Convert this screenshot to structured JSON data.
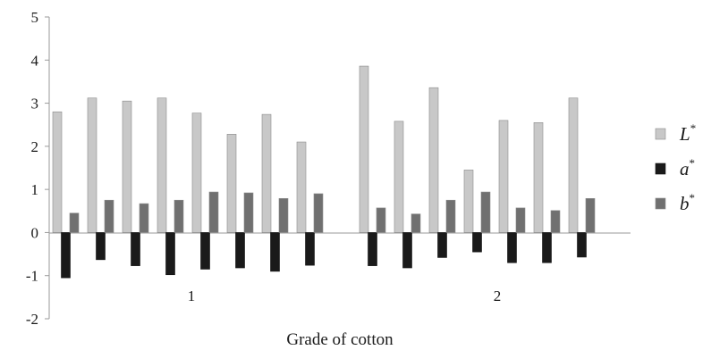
{
  "chart_data": {
    "type": "bar",
    "xlabel": "Grade of cotton",
    "ylabel": "",
    "ylim": [
      -2,
      5
    ],
    "yticks": [
      -2,
      -1,
      0,
      1,
      2,
      3,
      4,
      5
    ],
    "grid": false,
    "legend_position": "right",
    "groups": [
      {
        "label": "1",
        "samples": 8
      },
      {
        "label": "2",
        "samples": 7
      }
    ],
    "series": [
      {
        "name": "L",
        "sup": "*",
        "color": "#c8c8c8",
        "values": [
          2.8,
          3.12,
          3.05,
          3.12,
          2.77,
          2.28,
          2.74,
          2.1,
          3.86,
          2.58,
          3.36,
          1.45,
          2.6,
          2.55,
          3.12
        ]
      },
      {
        "name": "a",
        "sup": "*",
        "color": "#1a1a1a",
        "values": [
          -1.05,
          -0.63,
          -0.77,
          -0.98,
          -0.85,
          -0.82,
          -0.9,
          -0.76,
          -0.77,
          -0.82,
          -0.58,
          -0.45,
          -0.7,
          -0.7,
          -0.57
        ]
      },
      {
        "name": "b",
        "sup": "*",
        "color": "#707070",
        "values": [
          0.45,
          0.75,
          0.67,
          0.75,
          0.94,
          0.92,
          0.79,
          0.9,
          0.57,
          0.43,
          0.75,
          0.94,
          0.57,
          0.51,
          0.79
        ]
      }
    ]
  }
}
